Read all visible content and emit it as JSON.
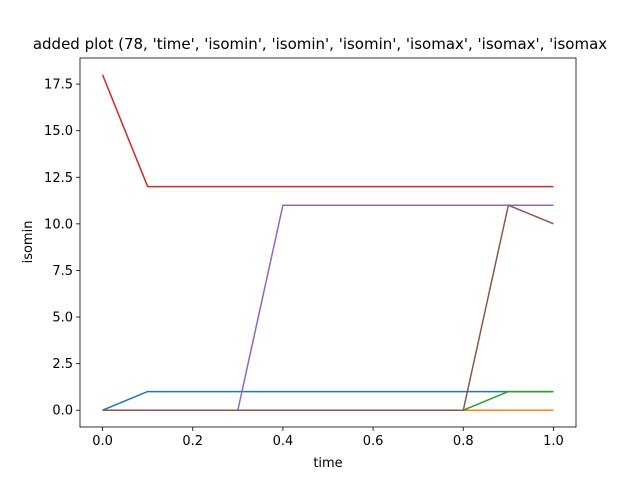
{
  "chart_data": {
    "type": "line",
    "title": "added plot (78, 'time', 'isomin', 'isomin', 'isomin', 'isomax', 'isomax', 'isomax",
    "xlabel": "time",
    "ylabel": "isomin",
    "xlim": [
      -0.05,
      1.05
    ],
    "ylim": [
      -0.9,
      18.9
    ],
    "xticks": [
      0.0,
      0.2,
      0.4,
      0.6,
      0.8,
      1.0
    ],
    "xtick_labels": [
      "0.0",
      "0.2",
      "0.4",
      "0.6",
      "0.8",
      "1.0"
    ],
    "yticks": [
      0.0,
      2.5,
      5.0,
      7.5,
      10.0,
      12.5,
      15.0,
      17.5
    ],
    "ytick_labels": [
      "0.0",
      "2.5",
      "5.0",
      "7.5",
      "10.0",
      "12.5",
      "15.0",
      "17.5"
    ],
    "grid": false,
    "x": [
      0.0,
      0.1,
      0.2,
      0.3,
      0.4,
      0.5,
      0.6,
      0.7,
      0.8,
      0.9,
      1.0
    ],
    "series": [
      {
        "color": "#1f77b4",
        "values": [
          0,
          1,
          1,
          1,
          1,
          1,
          1,
          1,
          1,
          1,
          1
        ]
      },
      {
        "color": "#ff7f0e",
        "values": [
          0,
          0,
          0,
          0,
          0,
          0,
          0,
          0,
          0,
          0,
          0
        ]
      },
      {
        "color": "#2ca02c",
        "values": [
          0,
          0,
          0,
          0,
          0,
          0,
          0,
          0,
          0,
          1,
          1
        ]
      },
      {
        "color": "#d62728",
        "values": [
          18,
          12,
          12,
          12,
          12,
          12,
          12,
          12,
          12,
          12,
          12
        ]
      },
      {
        "color": "#9467bd",
        "values": [
          0,
          0,
          0,
          0,
          11,
          11,
          11,
          11,
          11,
          11,
          11
        ]
      },
      {
        "color": "#8c564b",
        "values": [
          0,
          0,
          0,
          0,
          0,
          0,
          0,
          0,
          0,
          11,
          10
        ]
      }
    ]
  }
}
